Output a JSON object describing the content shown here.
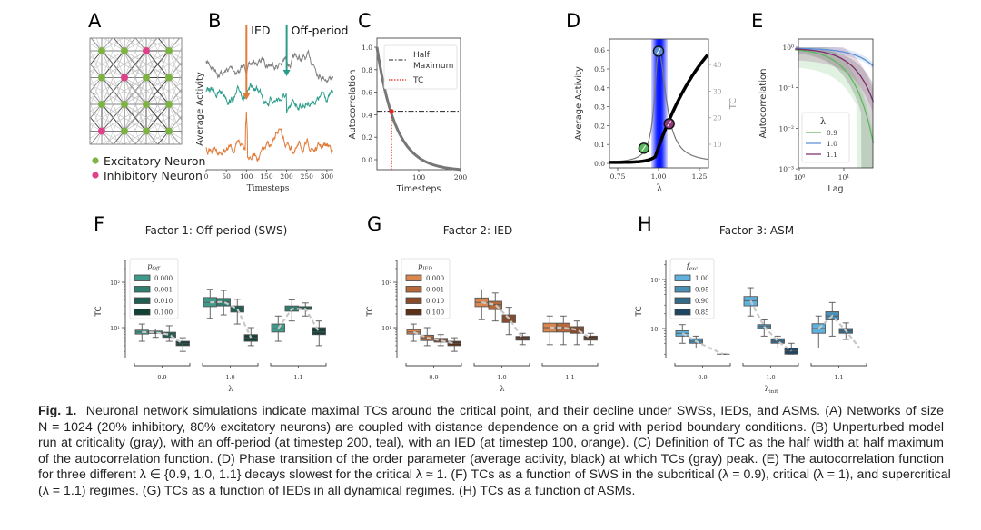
{
  "panels": {
    "A": {
      "label": "A",
      "legend": [
        {
          "text": "Excitatory Neuron",
          "color": "#7cb342"
        },
        {
          "text": "Inhibitory Neuron",
          "color": "#e0408a"
        }
      ],
      "inhibitory_nodes": [
        [
          2,
          0
        ],
        [
          1,
          1
        ],
        [
          0,
          3
        ]
      ]
    },
    "B": {
      "label": "B",
      "ylabel": "Average Activity",
      "xlabel": "Timesteps",
      "xticks": [
        "0",
        "50",
        "100",
        "150",
        "200",
        "250",
        "300"
      ],
      "annotations": [
        {
          "text": "IED",
          "t": 100,
          "color": "#e07b39"
        },
        {
          "text": "Off-period",
          "t": 200,
          "color": "#2a9d8a"
        }
      ],
      "series_colors": {
        "unperturbed": "#808080",
        "off_period": "#2a9d8a",
        "ied": "#e07b39"
      }
    },
    "C": {
      "label": "C",
      "ylabel": "Autocorrelation",
      "xlabel": "Timesteps",
      "yticks": [
        "0.0",
        "0.2",
        "0.4",
        "0.6",
        "0.8",
        "1.0"
      ],
      "xticks": [
        "100",
        "200"
      ],
      "legend": [
        {
          "text": "Half\nMaximum",
          "style": "dash-dot",
          "color": "#222222"
        },
        {
          "text": "TC",
          "style": "dotted",
          "color": "#e8231c"
        }
      ],
      "half_maximum": 0.43,
      "tc": 35
    },
    "D": {
      "label": "D",
      "ylabel": "Average Activity",
      "ylabel_right": "TC",
      "xlabel": "λ",
      "yticks": [
        "0.0",
        "0.1",
        "0.2",
        "0.3",
        "0.4",
        "0.5",
        "0.6"
      ],
      "yticks_right": [
        "10",
        "20",
        "30",
        "40"
      ],
      "xticks": [
        "0.75",
        "1.00",
        "1.25"
      ],
      "markers": [
        {
          "lambda": 0.91,
          "color": "#5cb85c"
        },
        {
          "lambda": 1.0,
          "color": "#5b8fd6"
        },
        {
          "lambda": 1.065,
          "color": "#8e3b7a"
        }
      ]
    },
    "E": {
      "label": "E",
      "ylabel": "Autocorrelation",
      "xlabel": "Lag",
      "yticks": [
        "10⁰",
        "10⁻¹",
        "10⁻²",
        "10⁻³"
      ],
      "xticks": [
        "10⁰",
        "10¹"
      ],
      "legend_title": "λ",
      "legend": [
        {
          "text": "0.9",
          "color": "#5cb85c"
        },
        {
          "text": "1.0",
          "color": "#5b8fd6"
        },
        {
          "text": "1.1",
          "color": "#7b2d6b"
        }
      ]
    }
  },
  "chart_data": [
    {
      "panel": "F",
      "type": "box",
      "title": "Factor 1: Off-period (SWS)",
      "xlabel": "λ",
      "ylabel": "TC",
      "yscale": "log",
      "ylim": [
        2,
        300
      ],
      "yticks": [
        "10¹",
        "10²"
      ],
      "categories": [
        "0.9",
        "1.0",
        "1.1"
      ],
      "legend_title": "p",
      "legend_sub": "Off",
      "series": [
        {
          "name": "0.000",
          "color": "#3f9a8a",
          "boxes": [
            {
              "q1": 7.2,
              "med": 8,
              "q3": 8.8,
              "lo": 5,
              "hi": 12
            },
            {
              "q1": 29,
              "med": 36,
              "q3": 46,
              "lo": 16,
              "hi": 70
            },
            {
              "q1": 8,
              "med": 9.5,
              "q3": 12,
              "lo": 5,
              "hi": 18
            }
          ]
        },
        {
          "name": "0.001",
          "color": "#2f7f70",
          "boxes": [
            {
              "q1": 7.4,
              "med": 7.8,
              "q3": 8.4,
              "lo": 6.1,
              "hi": 9.3
            },
            {
              "q1": 30,
              "med": 37,
              "q3": 44,
              "lo": 19,
              "hi": 66
            },
            {
              "q1": 23,
              "med": 26,
              "q3": 30,
              "lo": 14,
              "hi": 41
            }
          ]
        },
        {
          "name": "0.010",
          "color": "#1f5e52",
          "boxes": [
            {
              "q1": 6.1,
              "med": 7,
              "q3": 7.9,
              "lo": 5,
              "hi": 11
            },
            {
              "q1": 22,
              "med": 26,
              "q3": 30,
              "lo": 12,
              "hi": 42
            },
            {
              "q1": 25,
              "med": 26,
              "q3": 29,
              "lo": 18,
              "hi": 35
            }
          ]
        },
        {
          "name": "0.100",
          "color": "#123f36",
          "boxes": [
            {
              "q1": 4,
              "med": 4.4,
              "q3": 5,
              "lo": 3,
              "hi": 6
            },
            {
              "q1": 5,
              "med": 6,
              "q3": 7,
              "lo": 4,
              "hi": 10
            },
            {
              "q1": 7,
              "med": 8,
              "q3": 10,
              "lo": 4,
              "hi": 14
            }
          ]
        }
      ]
    },
    {
      "panel": "G",
      "type": "box",
      "title": "Factor 2: IED",
      "xlabel": "λ",
      "ylabel": "TC",
      "yscale": "log",
      "ylim": [
        2,
        300
      ],
      "yticks": [
        "10¹",
        "10²"
      ],
      "categories": [
        "0.9",
        "1.0",
        "1.1"
      ],
      "legend_title": "p",
      "legend_sub": "IED",
      "series": [
        {
          "name": "0.000",
          "color": "#d9874e",
          "boxes": [
            {
              "q1": 7.2,
              "med": 8,
              "q3": 9,
              "lo": 5,
              "hi": 12
            },
            {
              "q1": 29,
              "med": 36,
              "q3": 45,
              "lo": 15,
              "hi": 68
            },
            {
              "q1": 8,
              "med": 10,
              "q3": 12.5,
              "lo": 4.2,
              "hi": 18
            }
          ]
        },
        {
          "name": "0.001",
          "color": "#b8693a",
          "boxes": [
            {
              "q1": 5.2,
              "med": 6,
              "q3": 6.8,
              "lo": 4,
              "hi": 10
            },
            {
              "q1": 25,
              "med": 32,
              "q3": 38,
              "lo": 14,
              "hi": 58
            },
            {
              "q1": 8,
              "med": 10,
              "q3": 12.5,
              "lo": 4.2,
              "hi": 18
            }
          ]
        },
        {
          "name": "0.010",
          "color": "#8a4b28",
          "boxes": [
            {
              "q1": 4.8,
              "med": 5.2,
              "q3": 5.8,
              "lo": 4,
              "hi": 7
            },
            {
              "q1": 13,
              "med": 16,
              "q3": 19,
              "lo": 7,
              "hi": 28
            },
            {
              "q1": 7.5,
              "med": 9,
              "q3": 10.5,
              "lo": 4.2,
              "hi": 14
            }
          ]
        },
        {
          "name": "0.100",
          "color": "#5a3018",
          "boxes": [
            {
              "q1": 4,
              "med": 4.5,
              "q3": 5,
              "lo": 3,
              "hi": 6
            },
            {
              "q1": 5.3,
              "med": 5.8,
              "q3": 6.4,
              "lo": 4.2,
              "hi": 7.5
            },
            {
              "q1": 5.3,
              "med": 5.8,
              "q3": 6.5,
              "lo": 4.2,
              "hi": 7.5
            }
          ]
        }
      ]
    },
    {
      "panel": "H",
      "type": "box",
      "title": "Factor 3: ASM",
      "xlabel": "λ",
      "xlabel_sub": "init",
      "ylabel": "TC",
      "yscale": "log",
      "ylim": [
        2,
        300
      ],
      "yticks": [
        "10¹",
        "10²"
      ],
      "categories": [
        "0.9",
        "1.0",
        "1.1"
      ],
      "legend_title": "f",
      "legend_sub": "exc",
      "series": [
        {
          "name": "1.00",
          "color": "#5fb2dd",
          "boxes": [
            {
              "q1": 7,
              "med": 8,
              "q3": 9,
              "lo": 5,
              "hi": 12
            },
            {
              "q1": 29,
              "med": 37,
              "q3": 45,
              "lo": 18,
              "hi": 68
            },
            {
              "q1": 8,
              "med": 10,
              "q3": 12.5,
              "lo": 4,
              "hi": 18
            }
          ]
        },
        {
          "name": "0.95",
          "color": "#4a8fb5",
          "boxes": [
            {
              "q1": 5,
              "med": 5.5,
              "q3": 6.2,
              "lo": 4,
              "hi": 7
            },
            {
              "q1": 10,
              "med": 11,
              "q3": 12,
              "lo": 7,
              "hi": 15
            },
            {
              "q1": 15,
              "med": 18,
              "q3": 22,
              "lo": 7,
              "hi": 34
            }
          ]
        },
        {
          "name": "0.90",
          "color": "#336b8a",
          "boxes": [
            {
              "q1": 4,
              "med": 4,
              "q3": 4,
              "lo": 4,
              "hi": 4
            },
            {
              "q1": 5,
              "med": 5.5,
              "q3": 6.2,
              "lo": 4,
              "hi": 7
            },
            {
              "q1": 8,
              "med": 9,
              "q3": 10,
              "lo": 6,
              "hi": 13
            }
          ]
        },
        {
          "name": "0.85",
          "color": "#1f4660",
          "boxes": [
            {
              "q1": 3,
              "med": 3,
              "q3": 3,
              "lo": 3,
              "hi": 3
            },
            {
              "q1": 3,
              "med": 3.5,
              "q3": 4,
              "lo": 3,
              "hi": 5
            },
            {
              "q1": 4,
              "med": 4,
              "q3": 4,
              "lo": 4,
              "hi": 4
            }
          ]
        }
      ]
    }
  ],
  "panel_labels": {
    "F": "F",
    "G": "G",
    "H": "H"
  },
  "caption": {
    "lead": "Fig. 1.",
    "lines": [
      "Neuronal network simulations indicate maximal TCs around the critical point, and their decline under SWSs, IEDs, and ASMs. (A) Networks of size",
      "N = 1024 (20% inhibitory, 80% excitatory neurons) are coupled with distance dependence on a grid with period boundary conditions. (B) Unperturbed model",
      "run at criticality (gray), with an off-period (at timestep 200, teal), with an IED (at timestep 100, orange). (C) Definition of TC as the half width at half maximum",
      "of the autocorrelation function. (D) Phase transition of the order parameter (average activity, black) at which TCs (gray) peak. (E) The autocorrelation function",
      "for three different λ ∈ {0.9, 1.0, 1.1} decays slowest for the critical λ ≈ 1. (F) TCs as a function of SWS in the subcritical (λ = 0.9), critical (λ = 1), and supercritical",
      "(λ = 1.1) regimes. (G) TCs as a function of IEDs in all dynamical regimes. (H) TCs as a function of ASMs."
    ]
  }
}
